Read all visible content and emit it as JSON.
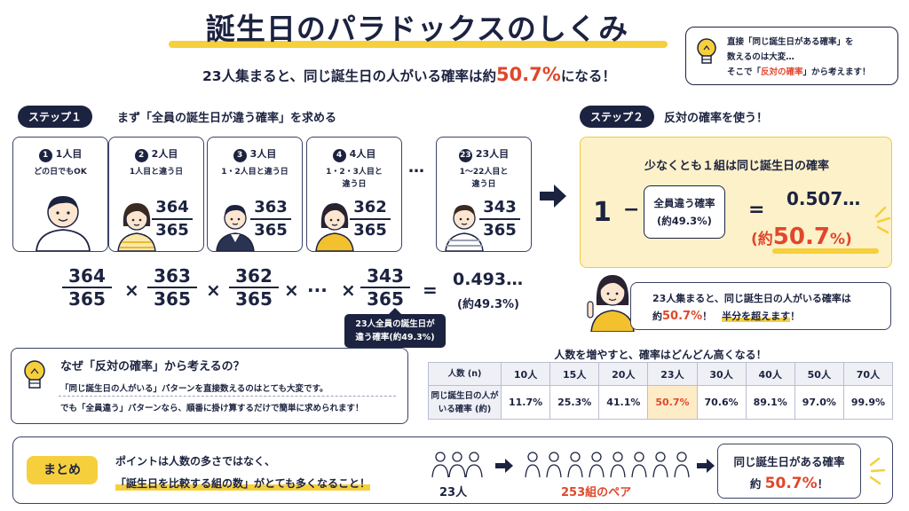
{
  "header": {
    "title": "誕生日のパラドックスのしくみ",
    "subtitle_pre": "23人集まると、同じ誕生日の人がいる確率は約",
    "subtitle_hl": "50.7%",
    "subtitle_post": "になる！"
  },
  "tip": {
    "line1": "直接「同じ誕生日がある確率」を",
    "line2": "数えるのは大変…",
    "line3_pre": "そこで「",
    "line3_red": "反対の確率",
    "line3_post": "」から考えます！"
  },
  "step1": {
    "badge": "ステップ１",
    "text": "まず「全員の誕生日が違う確率」を求める",
    "cards": [
      {
        "num": "1",
        "label": "1人目",
        "desc1": "どの日でもOK",
        "desc2": "",
        "numer": "",
        "denom": ""
      },
      {
        "num": "2",
        "label": "2人目",
        "desc1": "1人目と違う日",
        "desc2": "",
        "numer": "364",
        "denom": "365"
      },
      {
        "num": "3",
        "label": "3人目",
        "desc1": "1・2人目と違う日",
        "desc2": "",
        "numer": "363",
        "denom": "365"
      },
      {
        "num": "4",
        "label": "4人目",
        "desc1": "1・2・3人目と",
        "desc2": "違う日",
        "numer": "362",
        "denom": "365"
      },
      {
        "num": "23",
        "label": "23人目",
        "desc1": "1～22人目と",
        "desc2": "違う日",
        "numer": "343",
        "denom": "365"
      }
    ],
    "dots": "…",
    "formula": {
      "fractions": [
        {
          "n": "364",
          "d": "365"
        },
        {
          "n": "363",
          "d": "365"
        },
        {
          "n": "362",
          "d": "365"
        },
        {
          "n": "343",
          "d": "365"
        }
      ],
      "times": "×",
      "ellipsis": "···",
      "equals": "=",
      "result": "0.493…",
      "result_pct": "(約49.3%)"
    },
    "tooltip_l1": "23人全員の誕生日が",
    "tooltip_l2": "違う確率(約49.3%)"
  },
  "step2": {
    "badge": "ステップ２",
    "text": "反対の確率を使う！",
    "box_title": "少なくとも１組は同じ誕生日の確率",
    "one": "1",
    "minus": "−",
    "small_l1": "全員違う確率",
    "small_l2": "(約49.3%)",
    "equals": "=",
    "value": "0.507…",
    "pct_open": "(約",
    "pct_num": "50.7",
    "pct_close": "%)",
    "speech_l1": "23人集まると、同じ誕生日の人がいる確率は",
    "speech_pre": "約",
    "speech_red": "50.7%",
    "speech_mid": "！",
    "speech_ul": "半分を超えます",
    "speech_end": "！"
  },
  "why": {
    "title": "なぜ「反対の確率」から考えるの？",
    "line1": "「同じ誕生日の人がいる」パターンを直接数えるのはとても大変です。",
    "line2": "でも「全員違う」パターンなら、順番に掛け算するだけで簡単に求められます！"
  },
  "table": {
    "title": "人数を増やすと、確率はどんどん高くなる！",
    "head_label": "人数 (n)",
    "row_label_1": "同じ誕生日の人が",
    "row_label_2": "いる確率 (約)",
    "cols": [
      "10人",
      "15人",
      "20人",
      "23人",
      "30人",
      "40人",
      "50人",
      "70人"
    ],
    "vals": [
      "11.7%",
      "25.3%",
      "41.1%",
      "50.7%",
      "70.6%",
      "89.1%",
      "97.0%",
      "99.9%"
    ]
  },
  "summary": {
    "badge": "まとめ",
    "line1": "ポイントは人数の多さではなく、",
    "line2": "「誕生日を比較する組の数」がとても多くなること！",
    "people": "23人",
    "pairs": "253組のペア",
    "result_l1": "同じ誕生日がある確率",
    "result_pre": "約 ",
    "result_red": "50.7%",
    "result_post": "！"
  },
  "colors": {
    "navy": "#1c2340",
    "yellow": "#f6cf3c",
    "red": "#e0472c",
    "cream": "#fdf1c9"
  }
}
